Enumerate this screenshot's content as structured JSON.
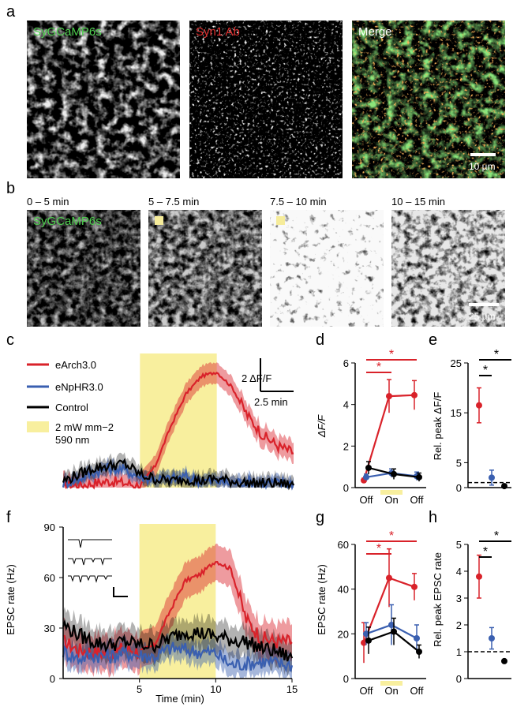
{
  "panel_letters": {
    "a": "a",
    "b": "b",
    "c": "c",
    "d": "d",
    "e": "e",
    "f": "f",
    "g": "g",
    "h": "h"
  },
  "panel_a": {
    "images": [
      {
        "label": "SyGCaMP6s",
        "color": "#4fcf4f"
      },
      {
        "label": "Syn1 Ab",
        "color": "#e03030"
      },
      {
        "label": "Merge",
        "color": "#ffffff"
      }
    ],
    "scale_label": "10 µm"
  },
  "panel_b": {
    "times": [
      "0 – 5 min",
      "5 – 7.5 min",
      "7.5 – 10 min",
      "10 – 15 min"
    ],
    "image_label": "SyGCaMP6s",
    "scale_label": "25 µm"
  },
  "colors": {
    "eArch": "#d9222a",
    "eNpHR": "#3a5fb0",
    "control": "#000000",
    "light": "#f8ef9e",
    "sig": "#d9222a"
  },
  "panel_c": {
    "legend": [
      "eArch3.0",
      "eNpHR3.0",
      "Control",
      "2 mW mm−2",
      "590 nm"
    ],
    "scale_y": "2 ΔF/F",
    "scale_x": "2.5 min"
  },
  "panel_d": {
    "ylabel": "ΔF/F",
    "yticks": [
      "0",
      "2",
      "4",
      "6"
    ],
    "xticks": [
      "Off",
      "On",
      "Off"
    ],
    "star": "*"
  },
  "panel_e": {
    "ylabel": "Rel. peak ΔF/F",
    "yticks": [
      "0",
      "5",
      "15",
      "25"
    ],
    "star": "*"
  },
  "panel_f": {
    "ylabel": "EPSC rate (Hz)",
    "xlabel": "Time (min)",
    "yticks": [
      "0",
      "30",
      "60",
      "90"
    ],
    "xticks": [
      "5",
      "10",
      "15"
    ]
  },
  "panel_g": {
    "ylabel": "EPSC rate (Hz)",
    "yticks": [
      "0",
      "20",
      "40",
      "60"
    ],
    "xticks": [
      "Off",
      "On",
      "Off"
    ],
    "star": "*"
  },
  "panel_h": {
    "ylabel": "Rel. peak EPSC rate",
    "yticks": [
      "0",
      "1",
      "2",
      "3",
      "4",
      "5"
    ],
    "star": "*"
  },
  "chart_data": [
    {
      "type": "line",
      "panel": "c",
      "x_unit": "min",
      "x": [
        0,
        1,
        2,
        3,
        4,
        5,
        6,
        7,
        8,
        9,
        10,
        11,
        12,
        13,
        14,
        15
      ],
      "light_on": [
        5,
        10
      ],
      "series": [
        {
          "name": "eArch3.0",
          "values": [
            0.1,
            0.1,
            0.2,
            0.3,
            0.2,
            0.1,
            1.0,
            2.8,
            4.3,
            5.1,
            5.3,
            4.6,
            3.3,
            2.4,
            1.9,
            1.6
          ]
        },
        {
          "name": "eNpHR3.0",
          "values": [
            0.2,
            0.4,
            0.7,
            0.9,
            0.8,
            0.5,
            0.4,
            0.4,
            0.5,
            0.3,
            0.3,
            0.2,
            0.3,
            0.2,
            0.2,
            0.2
          ]
        },
        {
          "name": "Control",
          "values": [
            0.3,
            0.6,
            0.9,
            1.0,
            1.1,
            0.6,
            0.4,
            0.3,
            0.4,
            0.3,
            0.4,
            0.3,
            0.2,
            0.2,
            0.2,
            0.1
          ]
        }
      ]
    },
    {
      "type": "line",
      "panel": "d",
      "categories": [
        "Off",
        "On",
        "Off"
      ],
      "ylim": [
        0,
        6
      ],
      "series": [
        {
          "name": "eArch3.0",
          "values": [
            0.35,
            4.4,
            4.45
          ],
          "errors": [
            0.1,
            0.8,
            0.7
          ]
        },
        {
          "name": "eNpHR3.0",
          "values": [
            0.5,
            0.7,
            0.55
          ],
          "errors": [
            0.15,
            0.2,
            0.2
          ]
        },
        {
          "name": "Control",
          "values": [
            0.95,
            0.65,
            0.5
          ],
          "errors": [
            0.3,
            0.25,
            0.2
          ]
        }
      ]
    },
    {
      "type": "scatter",
      "panel": "e",
      "ylim": [
        0,
        25
      ],
      "reference_line": 1,
      "series": [
        {
          "name": "eArch3.0",
          "values": [
            16.5
          ],
          "errors": [
            3.5
          ]
        },
        {
          "name": "eNpHR3.0",
          "values": [
            2.0
          ],
          "errors": [
            1.5
          ]
        },
        {
          "name": "Control",
          "values": [
            0.3
          ],
          "errors": [
            0
          ]
        }
      ]
    },
    {
      "type": "line",
      "panel": "f",
      "x": [
        0,
        1,
        2,
        3,
        4,
        5,
        6,
        7,
        8,
        9,
        10,
        11,
        12,
        13,
        14,
        15
      ],
      "xlabel": "Time (min)",
      "ylabel": "EPSC rate (Hz)",
      "ylim": [
        0,
        90
      ],
      "light_on": [
        5,
        10
      ],
      "series": [
        {
          "name": "eArch3.0",
          "values": [
            22,
            17,
            16,
            15,
            18,
            16,
            20,
            40,
            58,
            62,
            70,
            65,
            35,
            24,
            22,
            22
          ]
        },
        {
          "name": "eNpHR3.0",
          "values": [
            16,
            12,
            14,
            13,
            15,
            14,
            13,
            18,
            17,
            16,
            15,
            8,
            9,
            10,
            9,
            8
          ]
        },
        {
          "name": "Control",
          "values": [
            32,
            26,
            22,
            20,
            22,
            20,
            20,
            24,
            28,
            27,
            25,
            23,
            22,
            18,
            16,
            12
          ]
        }
      ]
    },
    {
      "type": "line",
      "panel": "g",
      "categories": [
        "Off",
        "On",
        "Off"
      ],
      "ylim": [
        0,
        60
      ],
      "series": [
        {
          "name": "eArch3.0",
          "values": [
            16,
            45,
            41
          ],
          "errors": [
            9,
            13,
            6
          ]
        },
        {
          "name": "eNpHR3.0",
          "values": [
            20,
            24,
            18
          ],
          "errors": [
            5,
            9,
            6
          ]
        },
        {
          "name": "Control",
          "values": [
            17,
            21,
            12
          ],
          "errors": [
            6,
            6,
            3
          ]
        }
      ]
    },
    {
      "type": "scatter",
      "panel": "h",
      "ylim": [
        0,
        5
      ],
      "reference_line": 1,
      "series": [
        {
          "name": "eArch3.0",
          "values": [
            3.8
          ],
          "errors": [
            0.8
          ]
        },
        {
          "name": "eNpHR3.0",
          "values": [
            1.5
          ],
          "errors": [
            0.4
          ]
        },
        {
          "name": "Control",
          "values": [
            0.65
          ],
          "errors": [
            0
          ]
        }
      ]
    }
  ]
}
